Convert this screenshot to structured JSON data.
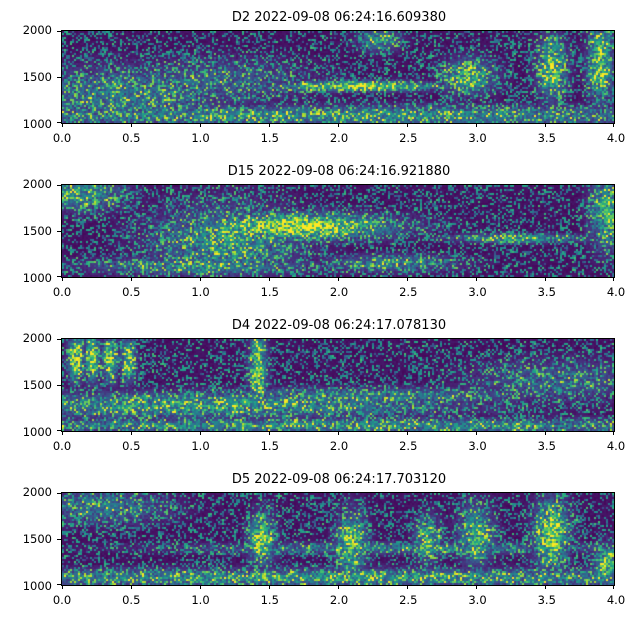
{
  "figure": {
    "background": "#ffffff",
    "axis_color": "#000000"
  },
  "palette": {
    "name": "viridis",
    "stops": [
      "#440154",
      "#482878",
      "#3e4a89",
      "#31688e",
      "#26828e",
      "#1f9e89",
      "#35b779",
      "#6dcd59",
      "#b4de2c",
      "#fde725"
    ]
  },
  "chart_data": [
    {
      "type": "heatmap",
      "subtype": "spectrogram",
      "title": "D2 2022-09-08 06:24:16.609380",
      "xlabel": "",
      "ylabel": "",
      "x_range": [
        0.0,
        4.0
      ],
      "y_range": [
        1000,
        2000
      ],
      "x_tick_labels": [
        "0.0",
        "0.5",
        "1.0",
        "1.5",
        "2.0",
        "2.5",
        "3.0",
        "3.5",
        "4.0"
      ],
      "y_tick_labels": [
        "2000",
        "1500",
        "1000"
      ],
      "colormap": "viridis",
      "grid": false,
      "legend": false,
      "seed": 2,
      "features": [
        {
          "x": 2.15,
          "f": 1400,
          "wx": 0.38,
          "wf": 35,
          "i": 0.95
        },
        {
          "x": 2.95,
          "f": 1500,
          "wx": 0.12,
          "wf": 120,
          "i": 0.7
        },
        {
          "x": 3.55,
          "f": 1600,
          "wx": 0.07,
          "wf": 220,
          "i": 0.75
        },
        {
          "x": 3.9,
          "f": 1650,
          "wx": 0.06,
          "wf": 280,
          "i": 0.75
        },
        {
          "x": 2.3,
          "f": 1900,
          "wx": 0.1,
          "wf": 80,
          "i": 0.5
        },
        {
          "x": 0.45,
          "f": 1300,
          "wx": 0.5,
          "wf": 200,
          "i": 0.4
        },
        {
          "x": 1.1,
          "f": 1450,
          "wx": 0.45,
          "wf": 160,
          "i": 0.3
        },
        {
          "x": 2.0,
          "f": 1080,
          "wx": 2.2,
          "wf": 70,
          "i": 0.5
        }
      ]
    },
    {
      "type": "heatmap",
      "subtype": "spectrogram",
      "title": "D15 2022-09-08 06:24:16.921880",
      "xlabel": "",
      "ylabel": "",
      "x_range": [
        0.0,
        4.0
      ],
      "y_range": [
        1000,
        2000
      ],
      "x_tick_labels": [
        "0.0",
        "0.5",
        "1.0",
        "1.5",
        "2.0",
        "2.5",
        "3.0",
        "3.5",
        "4.0"
      ],
      "y_tick_labels": [
        "2000",
        "1500",
        "1000"
      ],
      "colormap": "viridis",
      "grid": false,
      "legend": false,
      "seed": 15,
      "features": [
        {
          "x": 1.7,
          "f": 1550,
          "wx": 0.45,
          "wf": 90,
          "i": 1.0
        },
        {
          "x": 1.2,
          "f": 1400,
          "wx": 0.35,
          "wf": 250,
          "i": 0.5
        },
        {
          "x": 3.3,
          "f": 1420,
          "wx": 0.3,
          "wf": 30,
          "i": 0.7
        },
        {
          "x": 3.95,
          "f": 1700,
          "wx": 0.08,
          "wf": 250,
          "i": 0.7
        },
        {
          "x": 0.15,
          "f": 1900,
          "wx": 0.2,
          "wf": 120,
          "i": 0.5
        },
        {
          "x": 1.0,
          "f": 1120,
          "wx": 0.5,
          "wf": 60,
          "i": 0.5
        },
        {
          "x": 2.4,
          "f": 1150,
          "wx": 0.3,
          "wf": 60,
          "i": 0.45
        }
      ]
    },
    {
      "type": "heatmap",
      "subtype": "spectrogram",
      "title": "D4 2022-09-08 06:24:17.078130",
      "xlabel": "",
      "ylabel": "",
      "x_range": [
        0.0,
        4.0
      ],
      "y_range": [
        1000,
        2000
      ],
      "x_tick_labels": [
        "0.0",
        "0.5",
        "1.0",
        "1.5",
        "2.0",
        "2.5",
        "3.0",
        "3.5",
        "4.0"
      ],
      "y_tick_labels": [
        "2000",
        "1500",
        "1000"
      ],
      "colormap": "viridis",
      "grid": false,
      "legend": false,
      "seed": 4,
      "features": [
        {
          "x": 0.1,
          "f": 1800,
          "wx": 0.035,
          "wf": 170,
          "i": 0.95
        },
        {
          "x": 0.22,
          "f": 1800,
          "wx": 0.035,
          "wf": 170,
          "i": 0.9
        },
        {
          "x": 0.35,
          "f": 1780,
          "wx": 0.035,
          "wf": 160,
          "i": 0.85
        },
        {
          "x": 0.48,
          "f": 1760,
          "wx": 0.035,
          "wf": 150,
          "i": 0.8
        },
        {
          "x": 1.42,
          "f": 1700,
          "wx": 0.04,
          "wf": 300,
          "i": 0.85
        },
        {
          "x": 1.0,
          "f": 1280,
          "wx": 1.2,
          "wf": 90,
          "i": 0.55
        },
        {
          "x": 2.2,
          "f": 1380,
          "wx": 0.8,
          "wf": 60,
          "i": 0.4
        },
        {
          "x": 3.6,
          "f": 1550,
          "wx": 0.4,
          "wf": 150,
          "i": 0.3
        },
        {
          "x": 2.0,
          "f": 1060,
          "wx": 2.2,
          "wf": 50,
          "i": 0.5
        }
      ]
    },
    {
      "type": "heatmap",
      "subtype": "spectrogram",
      "title": "D5 2022-09-08 06:24:17.703120",
      "xlabel": "",
      "ylabel": "",
      "x_range": [
        0.0,
        4.0
      ],
      "y_range": [
        1000,
        2000
      ],
      "x_tick_labels": [
        "0.0",
        "0.5",
        "1.0",
        "1.5",
        "2.0",
        "2.5",
        "3.0",
        "3.5",
        "4.0"
      ],
      "y_tick_labels": [
        "2000",
        "1500",
        "1000"
      ],
      "colormap": "viridis",
      "grid": false,
      "legend": false,
      "seed": 5,
      "features": [
        {
          "x": 1.45,
          "f": 1500,
          "wx": 0.06,
          "wf": 180,
          "i": 0.8
        },
        {
          "x": 2.1,
          "f": 1450,
          "wx": 0.07,
          "wf": 220,
          "i": 0.75
        },
        {
          "x": 2.65,
          "f": 1500,
          "wx": 0.06,
          "wf": 150,
          "i": 0.7
        },
        {
          "x": 3.0,
          "f": 1550,
          "wx": 0.08,
          "wf": 200,
          "i": 0.7
        },
        {
          "x": 3.55,
          "f": 1550,
          "wx": 0.08,
          "wf": 250,
          "i": 0.85
        },
        {
          "x": 2.5,
          "f": 1400,
          "wx": 1.1,
          "wf": 40,
          "i": 0.4
        },
        {
          "x": 0.3,
          "f": 1850,
          "wx": 0.3,
          "wf": 120,
          "i": 0.4
        },
        {
          "x": 3.95,
          "f": 1200,
          "wx": 0.06,
          "wf": 150,
          "i": 0.7
        },
        {
          "x": 2.0,
          "f": 1080,
          "wx": 2.3,
          "wf": 60,
          "i": 0.55
        }
      ]
    }
  ]
}
